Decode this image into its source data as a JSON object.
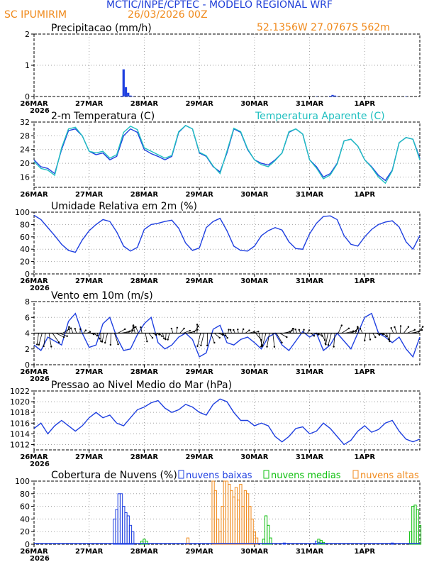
{
  "header": {
    "title": "MCTIC/INPE/CPTEC - MODELO REGIONAL WRF",
    "location": "SC IPUMIRIM",
    "run": "26/03/2026 00Z",
    "coords": "52.1356W 27.0767S 562m"
  },
  "colors": {
    "title": "#1f3fd8",
    "orange": "#f08a1c",
    "blue": "#1e3fe0",
    "cyan": "#20c0c0",
    "green": "#10c010",
    "black": "#000000",
    "grid": "#a0a0a0"
  },
  "chart_data": [
    {
      "type": "bar",
      "title": "Precipitacao (mm/h)",
      "x_ticks": [
        "26MAR\n2026",
        "27MAR",
        "28MAR",
        "29MAR",
        "30MAR",
        "31MAR",
        "1APR"
      ],
      "ylim": [
        0,
        2
      ],
      "y_ticks": [
        0,
        1,
        2
      ],
      "hours": [
        38,
        39,
        40,
        41,
        42,
        43,
        123,
        129,
        130,
        131,
        132,
        162
      ],
      "values": [
        0.02,
        0.87,
        0.3,
        0.12,
        0.03,
        0.01,
        0.01,
        0.02,
        0.05,
        0.03,
        0.01,
        0.01
      ]
    },
    {
      "type": "line",
      "title": "2-m Temperatura (C)",
      "legend": "Temperatura Aparente (C)",
      "x_ticks": [
        "26MAR",
        "27MAR",
        "28MAR",
        "29MAR",
        "30MAR",
        "31MAR",
        "1APR"
      ],
      "ylim": [
        13,
        32
      ],
      "y_ticks": [
        16,
        20,
        24,
        28,
        32
      ],
      "series": [
        {
          "name": "Temperatura 2m",
          "color": "#1e3fe0",
          "x": [
            0,
            3,
            6,
            9,
            12,
            15,
            18,
            21,
            24,
            27,
            30,
            33,
            36,
            39,
            42,
            45,
            48,
            51,
            54,
            57,
            60,
            63,
            66,
            69,
            72,
            75,
            78,
            81,
            84,
            87,
            90,
            93,
            96,
            99,
            102,
            105,
            108,
            111,
            114,
            117,
            120,
            123,
            126,
            129,
            132,
            135,
            138,
            141,
            144,
            147,
            150,
            153,
            156,
            159,
            162,
            165,
            168
          ],
          "values": [
            21,
            19,
            18.5,
            17,
            24,
            29.5,
            30,
            28,
            23.5,
            22.5,
            23,
            21,
            22,
            28,
            30,
            29,
            24,
            22.8,
            22,
            21,
            22,
            29,
            31,
            30,
            23,
            22,
            19,
            17.5,
            23,
            30,
            29,
            24,
            21,
            20,
            19.5,
            21,
            23,
            29,
            30,
            28.5,
            21,
            19,
            16,
            17,
            20,
            26.5,
            27,
            25,
            21,
            19,
            16.5,
            15,
            18,
            26,
            27.5,
            27,
            21.5
          ]
        },
        {
          "name": "Temperatura Aparente",
          "color": "#20c0c0",
          "x": [
            0,
            3,
            6,
            9,
            12,
            15,
            18,
            21,
            24,
            27,
            30,
            33,
            36,
            39,
            42,
            45,
            48,
            51,
            54,
            57,
            60,
            63,
            66,
            69,
            72,
            75,
            78,
            81,
            84,
            87,
            90,
            93,
            96,
            99,
            102,
            105,
            108,
            111,
            114,
            117,
            120,
            123,
            126,
            129,
            132,
            135,
            138,
            141,
            144,
            147,
            150,
            153,
            156,
            159,
            162,
            165,
            168
          ],
          "values": [
            20.5,
            18.5,
            18,
            16.5,
            24.5,
            30,
            30.5,
            28,
            23.5,
            23,
            23.5,
            21.5,
            22.5,
            29,
            30.8,
            29.8,
            24.5,
            23.5,
            22.5,
            21.5,
            22.3,
            29.2,
            31,
            30,
            23.2,
            22.2,
            19.2,
            17,
            23.5,
            30.2,
            29.2,
            24.2,
            21,
            19.6,
            19,
            20.8,
            23,
            29.2,
            30,
            28.5,
            21,
            18.6,
            15.5,
            16.6,
            19.8,
            26.5,
            27,
            25,
            21,
            18.8,
            16,
            14.2,
            17.8,
            26,
            27.5,
            27,
            21
          ]
        }
      ]
    },
    {
      "type": "line",
      "title": "Umidade Relativa em 2m (%)",
      "x_ticks": [
        "26MAR\n2026",
        "27MAR",
        "28MAR",
        "29MAR",
        "30MAR",
        "31MAR",
        "1APR"
      ],
      "ylim": [
        0,
        100
      ],
      "y_ticks": [
        0,
        20,
        40,
        60,
        80,
        100
      ],
      "series": [
        {
          "name": "Umidade",
          "color": "#1e3fe0",
          "x": [
            0,
            3,
            6,
            9,
            12,
            15,
            18,
            21,
            24,
            27,
            30,
            33,
            36,
            39,
            42,
            45,
            48,
            51,
            54,
            57,
            60,
            63,
            66,
            69,
            72,
            75,
            78,
            81,
            84,
            87,
            90,
            93,
            96,
            99,
            102,
            105,
            108,
            111,
            114,
            117,
            120,
            123,
            126,
            129,
            132,
            135,
            138,
            141,
            144,
            147,
            150,
            153,
            156,
            159,
            162,
            165,
            168
          ],
          "values": [
            95,
            88,
            75,
            62,
            48,
            38,
            35,
            55,
            70,
            80,
            88,
            85,
            68,
            45,
            37,
            43,
            72,
            80,
            82,
            85,
            87,
            74,
            50,
            38,
            42,
            75,
            85,
            90,
            70,
            45,
            38,
            37,
            45,
            62,
            70,
            75,
            71,
            52,
            41,
            40,
            65,
            82,
            93,
            94,
            88,
            62,
            48,
            45,
            60,
            72,
            80,
            84,
            86,
            76,
            52,
            40,
            62
          ]
        }
      ]
    },
    {
      "type": "line",
      "title": "Vento em 10m (m/s)",
      "x_ticks": [
        "26MAR\n2026",
        "27MAR",
        "28MAR",
        "29MAR",
        "30MAR",
        "31MAR",
        "1APR"
      ],
      "ylim": [
        0,
        8
      ],
      "y_ticks": [
        0,
        2,
        4,
        6,
        8
      ],
      "series": [
        {
          "name": "Velocidade",
          "color": "#1e3fe0",
          "x": [
            0,
            3,
            6,
            9,
            12,
            15,
            18,
            21,
            24,
            27,
            30,
            33,
            36,
            39,
            42,
            45,
            48,
            51,
            54,
            57,
            60,
            63,
            66,
            69,
            72,
            75,
            78,
            81,
            84,
            87,
            90,
            93,
            96,
            99,
            102,
            105,
            108,
            111,
            114,
            117,
            120,
            123,
            126,
            129,
            132,
            135,
            138,
            141,
            144,
            147,
            150,
            153,
            156,
            159,
            162,
            165,
            168
          ],
          "values": [
            2.5,
            1.8,
            3.5,
            3.0,
            2.5,
            5.5,
            6.5,
            4.0,
            2.2,
            2.5,
            5.2,
            6.0,
            3.5,
            1.8,
            2.0,
            3.8,
            5.2,
            6.0,
            2.8,
            2.0,
            2.5,
            3.5,
            4.0,
            3.2,
            1.0,
            1.5,
            4.5,
            5.0,
            2.8,
            2.5,
            3.2,
            3.5,
            2.8,
            2.0,
            3.5,
            4.0,
            2.5,
            1.8,
            3.0,
            4.2,
            3.5,
            4.0,
            1.8,
            2.5,
            4.0,
            3.0,
            2.0,
            4.0,
            6.0,
            6.5,
            4.0,
            3.5,
            2.8,
            3.5,
            2.0,
            1.0,
            3.5
          ]
        }
      ]
    },
    {
      "type": "line",
      "title": "Pressao ao Nivel Medio do Mar (hPa)",
      "x_ticks": [
        "26MAR\n2026",
        "27MAR",
        "28MAR",
        "29MAR",
        "30MAR",
        "31MAR",
        "1APR"
      ],
      "ylim": [
        1011,
        1022
      ],
      "y_ticks": [
        1012,
        1014,
        1016,
        1018,
        1020,
        1022
      ],
      "series": [
        {
          "name": "Pressao",
          "color": "#1e3fe0",
          "x": [
            0,
            3,
            6,
            9,
            12,
            15,
            18,
            21,
            24,
            27,
            30,
            33,
            36,
            39,
            42,
            45,
            48,
            51,
            54,
            57,
            60,
            63,
            66,
            69,
            72,
            75,
            78,
            81,
            84,
            87,
            90,
            93,
            96,
            99,
            102,
            105,
            108,
            111,
            114,
            117,
            120,
            123,
            126,
            129,
            132,
            135,
            138,
            141,
            144,
            147,
            150,
            153,
            156,
            159,
            162,
            165,
            168
          ],
          "values": [
            1015,
            1016,
            1014,
            1015.5,
            1016.5,
            1015.5,
            1014.5,
            1015.5,
            1017,
            1018,
            1017,
            1017.5,
            1016,
            1015.5,
            1017,
            1018.5,
            1019,
            1019.8,
            1020.2,
            1018.8,
            1018,
            1018.5,
            1019.5,
            1019,
            1018,
            1017.5,
            1019.5,
            1020.5,
            1020,
            1018,
            1016.5,
            1016.5,
            1015.5,
            1016,
            1015.5,
            1013.5,
            1012.5,
            1013.5,
            1015,
            1015.3,
            1014,
            1014.5,
            1016,
            1015,
            1013.5,
            1012,
            1012.8,
            1014.5,
            1015.5,
            1014.3,
            1014.8,
            1016,
            1016.5,
            1014.5,
            1013,
            1012.5,
            1013
          ]
        }
      ]
    },
    {
      "type": "bar",
      "title": "Cobertura de Nuvens (%)",
      "legend": [
        "nuvens baixas",
        "nuvens medias",
        "nuvens altas"
      ],
      "x_ticks": [
        "26MAR\n2026",
        "27MAR",
        "28MAR",
        "29MAR",
        "30MAR",
        "31MAR",
        "1APR"
      ],
      "ylim": [
        0,
        100
      ],
      "y_ticks": [
        0,
        20,
        40,
        60,
        80,
        100
      ],
      "series": [
        {
          "name": "nuvens baixas",
          "color": "#1e3fe0",
          "hours": [
            35,
            36,
            37,
            38,
            39,
            40,
            41,
            42,
            43,
            109,
            123,
            124,
            125,
            156
          ],
          "values": [
            40,
            55,
            80,
            80,
            60,
            50,
            45,
            30,
            20,
            2,
            5,
            3,
            2,
            2
          ]
        },
        {
          "name": "nuvens medias",
          "color": "#10c010",
          "hours": [
            47,
            48,
            49,
            100,
            101,
            102,
            103,
            124,
            125,
            126,
            164,
            165,
            166,
            167,
            168
          ],
          "values": [
            5,
            8,
            5,
            8,
            45,
            30,
            10,
            8,
            6,
            3,
            20,
            60,
            62,
            55,
            30
          ]
        },
        {
          "name": "nuvens altas",
          "color": "#f08a1c",
          "hours": [
            67,
            78,
            79,
            80,
            81,
            82,
            83,
            84,
            85,
            86,
            87,
            88,
            89,
            90,
            91,
            92,
            93,
            94,
            95,
            96,
            97
          ],
          "values": [
            10,
            100,
            85,
            40,
            20,
            60,
            100,
            100,
            95,
            85,
            75,
            90,
            70,
            95,
            60,
            85,
            80,
            60,
            40,
            20,
            10
          ]
        }
      ]
    }
  ]
}
